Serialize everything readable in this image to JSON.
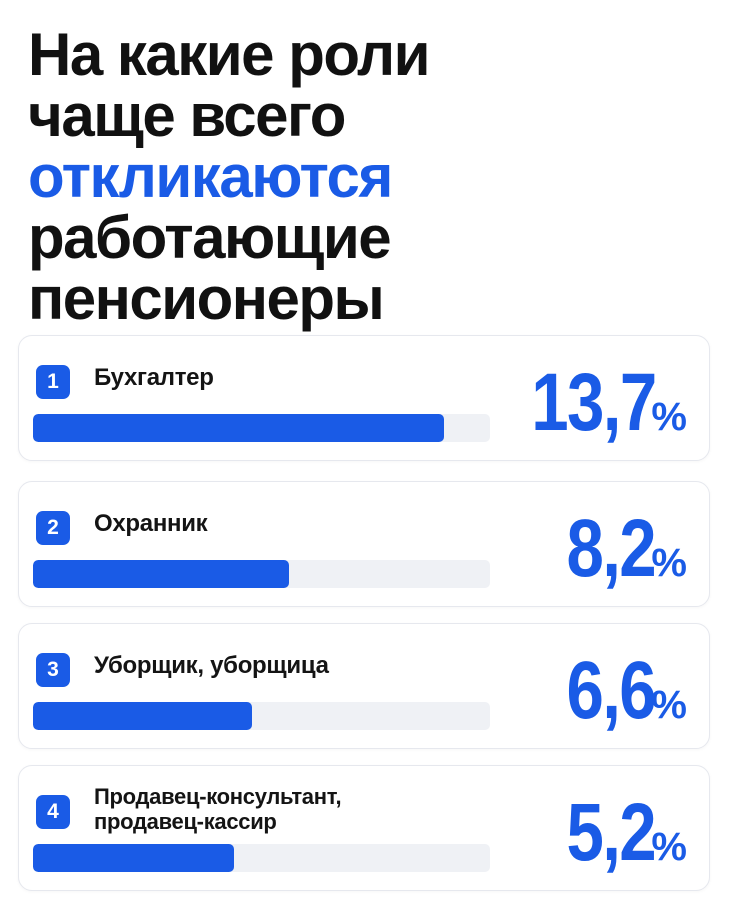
{
  "title": {
    "lines": [
      {
        "text": "На какие роли",
        "accent": false
      },
      {
        "text": "чаще всего",
        "accent": false
      },
      {
        "text": "откликаются",
        "accent": true
      },
      {
        "text": "работающие",
        "accent": false
      },
      {
        "text": "пенсионеры",
        "accent": false
      }
    ]
  },
  "colors": {
    "accent": "#1a5be6",
    "track": "#eff1f5",
    "text": "#111111",
    "card_border": "#e6e8ee"
  },
  "chart_data": {
    "type": "bar",
    "orientation": "horizontal",
    "title": "На какие роли чаще всего откликаются работающие пенсионеры",
    "categories": [
      "Бухгалтер",
      "Охранник",
      "Уборщик, уборщица",
      "Продавец-консультант,\nпродавец-кассир"
    ],
    "ranks": [
      "1",
      "2",
      "3",
      "4"
    ],
    "values": [
      13.7,
      8.2,
      6.6,
      5.2
    ],
    "value_labels": [
      "13,7",
      "8,2",
      "6,6",
      "5,2"
    ],
    "unit": "%",
    "bar_fill_fraction": [
      0.9,
      0.56,
      0.48,
      0.44
    ],
    "grid": false,
    "legend": "none"
  }
}
